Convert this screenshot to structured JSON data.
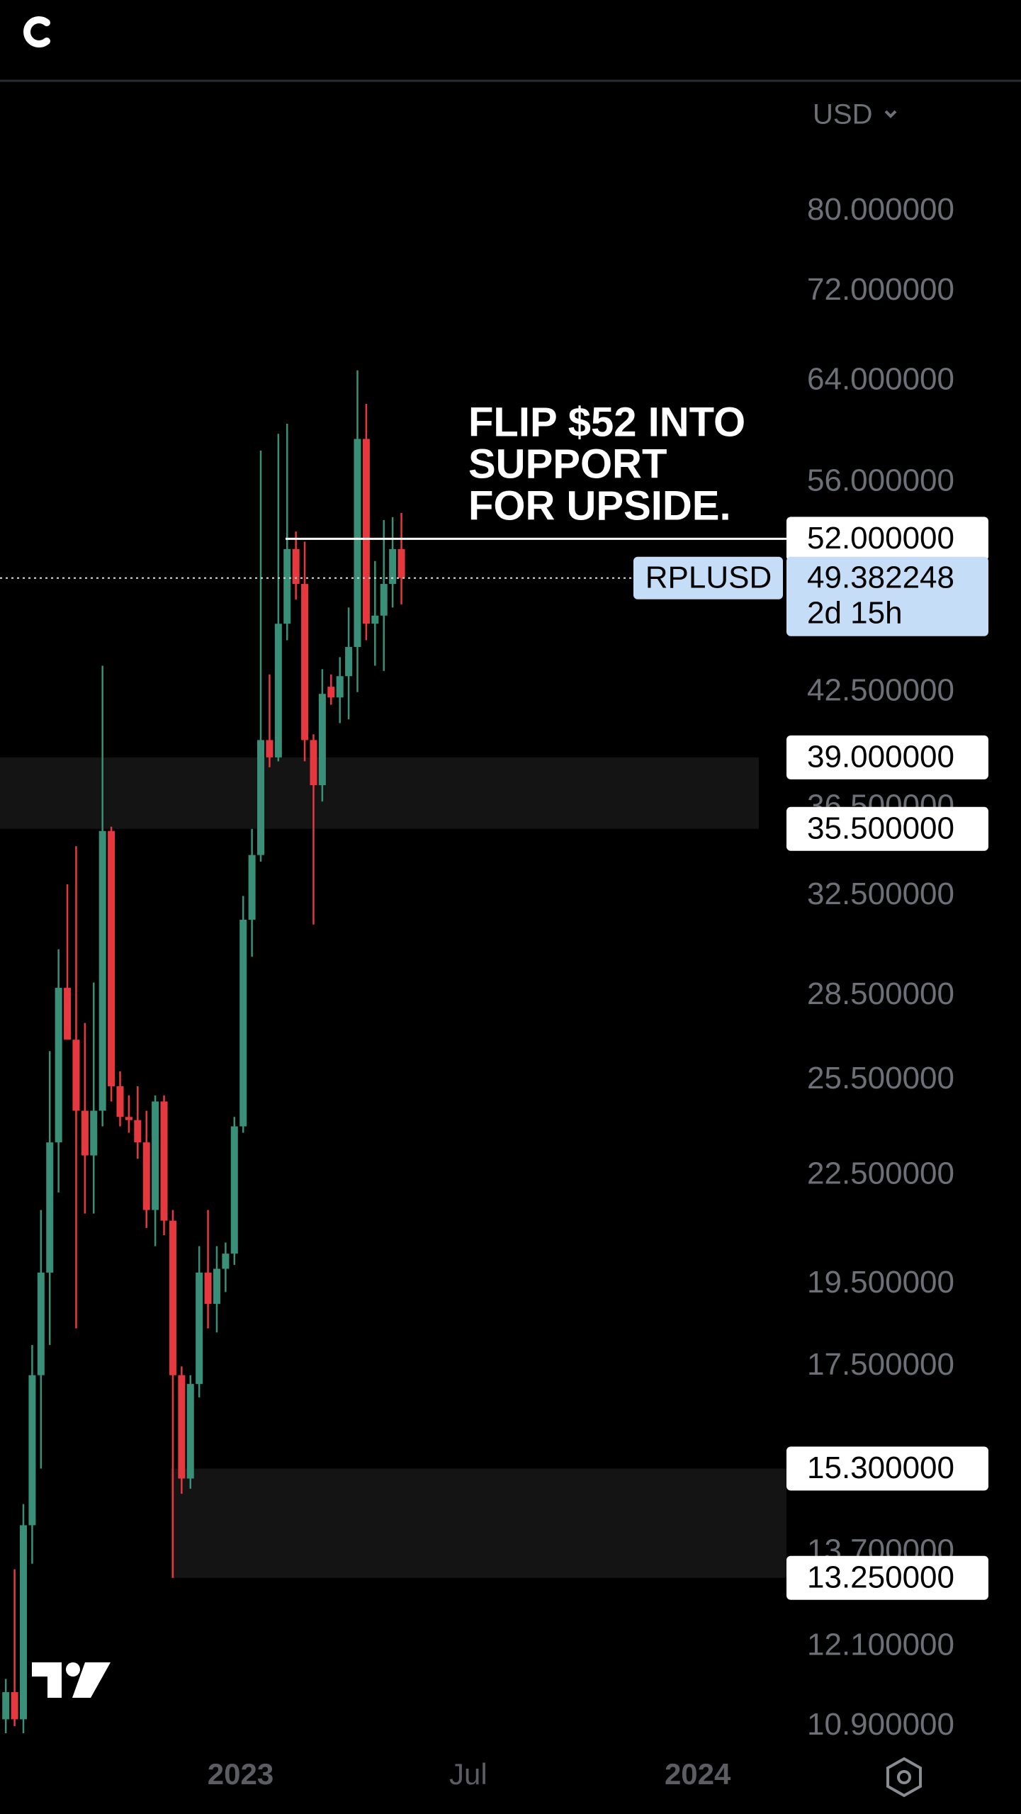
{
  "chart_data": {
    "type": "candlestick",
    "currency": "USD",
    "log_scale": true,
    "ylim": [
      10.7,
      95
    ],
    "yticks": [
      {
        "value": 80,
        "label": "80.000000"
      },
      {
        "value": 72,
        "label": "72.000000"
      },
      {
        "value": 64,
        "label": "64.000000"
      },
      {
        "value": 56,
        "label": "56.000000"
      },
      {
        "value": 42.5,
        "label": "42.500000"
      },
      {
        "value": 36.5,
        "label": "36.500000"
      },
      {
        "value": 32.5,
        "label": "32.500000"
      },
      {
        "value": 28.5,
        "label": "28.500000"
      },
      {
        "value": 25.5,
        "label": "25.500000"
      },
      {
        "value": 22.5,
        "label": "22.500000"
      },
      {
        "value": 19.5,
        "label": "19.500000"
      },
      {
        "value": 17.5,
        "label": "17.500000"
      },
      {
        "value": 13.7,
        "label": "13.700000"
      },
      {
        "value": 12.1,
        "label": "12.100000"
      },
      {
        "value": 10.9,
        "label": "10.900000"
      }
    ],
    "xlim": [
      -0.66,
      88.8
    ],
    "xticks": [
      {
        "value": 26.7,
        "label": "2023"
      },
      {
        "value": 52.6,
        "label": "Jul"
      },
      {
        "value": 78.7,
        "label": "2024"
      }
    ],
    "up_color": "#3a8f78",
    "down_color": "#e5393f",
    "x": [
      0,
      1,
      2,
      3,
      4,
      5,
      6,
      7,
      8,
      9,
      10,
      11,
      12,
      13,
      14,
      15,
      16,
      17,
      18,
      19,
      20,
      21,
      22,
      23,
      24,
      25,
      26,
      27,
      28,
      29,
      30,
      31,
      32,
      33,
      34,
      35,
      36,
      37,
      38,
      39,
      40,
      41,
      42,
      43,
      44,
      45
    ],
    "open": [
      11.0,
      11.4,
      11.0,
      14.2,
      17.3,
      19.8,
      23.5,
      28.8,
      26.9,
      24.5,
      23.1,
      24.5,
      35.4,
      25.3,
      24.3,
      24.2,
      23.5,
      21.5,
      24.8,
      21.2,
      17.3,
      15.1,
      17.1,
      19.8,
      19.0,
      19.9,
      20.3,
      24.0,
      31.5,
      34.3,
      39.9,
      39.0,
      46.5,
      51.3,
      49.0,
      39.9,
      37.6,
      42.8,
      42.2,
      43.4,
      45.1,
      59.3,
      46.5,
      47.0,
      49.0,
      51.3
    ],
    "high": [
      11.6,
      13.4,
      14.6,
      18.0,
      21.5,
      26.5,
      30.3,
      33.0,
      34.7,
      27.5,
      29.0,
      44.0,
      35.6,
      25.8,
      25.0,
      25.3,
      24.5,
      25.0,
      25.0,
      21.5,
      17.5,
      17.3,
      20.5,
      21.5,
      20.5,
      20.6,
      24.3,
      32.5,
      35.5,
      58.4,
      43.5,
      59.7,
      60.5,
      52.5,
      51.8,
      40.2,
      43.8,
      43.5,
      44.5,
      47.5,
      64.9,
      62.1,
      50.5,
      53.3,
      53.5,
      53.8
    ],
    "low": [
      10.8,
      10.9,
      10.8,
      13.5,
      15.3,
      18.0,
      22.0,
      27.0,
      18.4,
      21.4,
      21.4,
      24.0,
      24.8,
      24.0,
      23.8,
      23.0,
      21.0,
      20.5,
      20.8,
      13.25,
      14.8,
      14.9,
      16.8,
      18.4,
      18.3,
      19.3,
      20.0,
      23.8,
      30.0,
      34.0,
      38.5,
      38.8,
      45.5,
      48.0,
      38.8,
      31.3,
      36.8,
      41.8,
      40.8,
      41.0,
      42.5,
      45.5,
      44.0,
      43.7,
      47.5,
      47.7
    ],
    "close": [
      11.4,
      11.0,
      14.2,
      17.3,
      19.8,
      23.5,
      28.8,
      26.9,
      24.5,
      23.1,
      24.5,
      35.4,
      25.3,
      24.3,
      24.2,
      23.5,
      21.5,
      24.8,
      21.2,
      17.3,
      15.1,
      17.1,
      19.8,
      19.0,
      19.9,
      20.3,
      24.0,
      31.5,
      34.3,
      39.9,
      39.0,
      46.5,
      51.3,
      49.0,
      39.9,
      37.6,
      42.4,
      42.2,
      43.4,
      45.1,
      59.3,
      46.5,
      47.0,
      49.0,
      51.3,
      49.382248
    ],
    "zones": [
      {
        "from": 39,
        "to": 35.5
      },
      {
        "from": 15.3,
        "to": 13.25
      }
    ],
    "levels": [
      {
        "value": 52,
        "label": "52.000000"
      },
      {
        "value": 39,
        "label": "39.000000"
      },
      {
        "value": 35.5,
        "label": "35.500000"
      },
      {
        "value": 15.3,
        "label": "15.300000"
      },
      {
        "value": 13.25,
        "label": "13.250000"
      }
    ],
    "horizontal_line": 52,
    "annotation": [
      "FLIP $52 INTO",
      "SUPPORT",
      "FOR UPSIDE."
    ],
    "price": {
      "symbol": "RPLUSD",
      "value": 49.382248,
      "countdown": "2d 15h"
    }
  }
}
